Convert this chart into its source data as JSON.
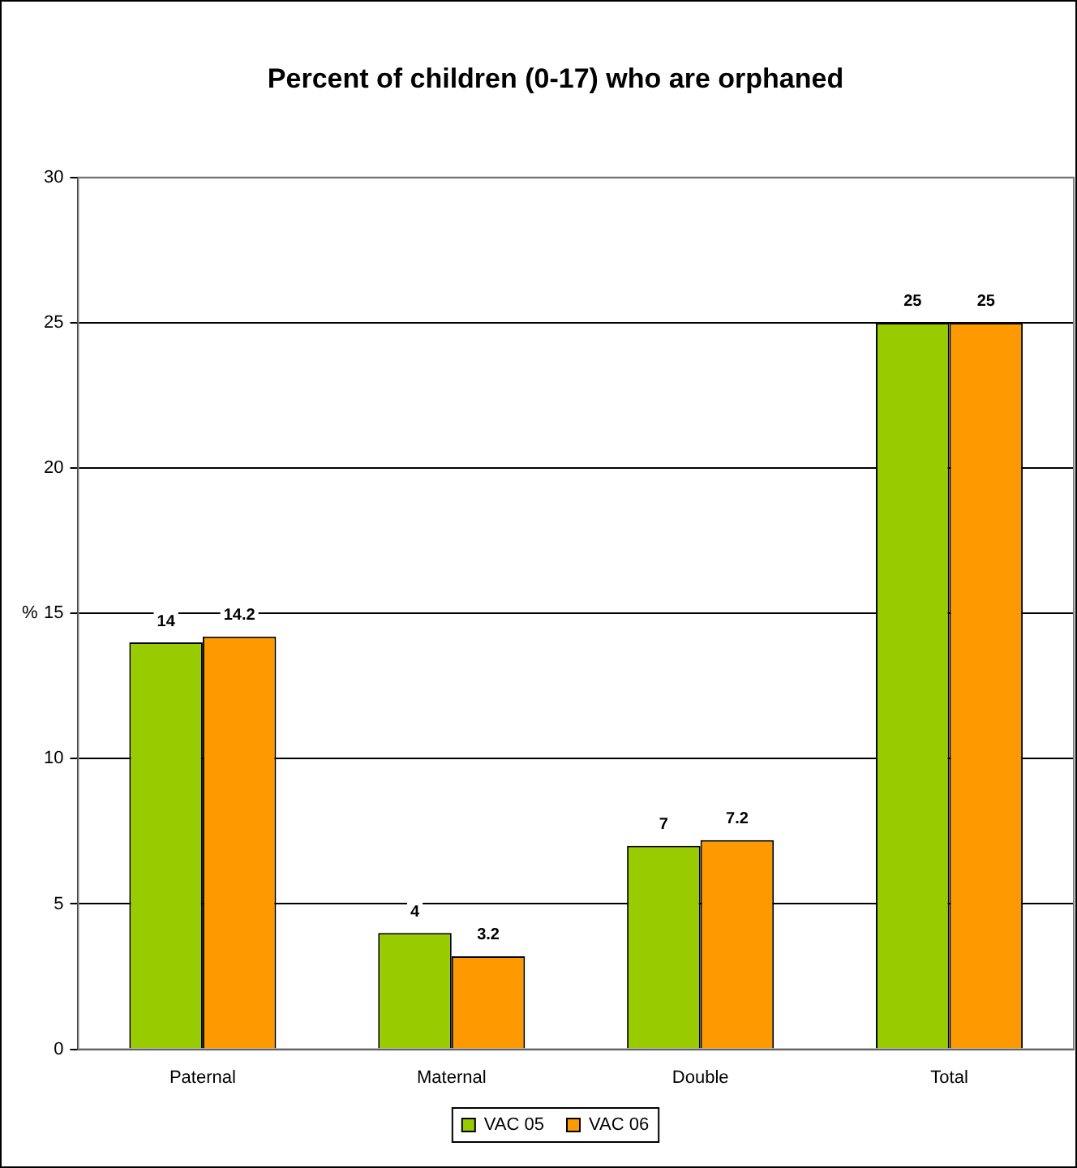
{
  "chart_data": {
    "type": "bar",
    "title": "Percent of children (0-17) who are orphaned",
    "ylabel": "%",
    "categories": [
      "Paternal",
      "Maternal",
      "Double",
      "Total"
    ],
    "series": [
      {
        "name": "VAC 05",
        "color": "#99cc00",
        "values": [
          14,
          4,
          7,
          25
        ]
      },
      {
        "name": "VAC 06",
        "color": "#ff9900",
        "values": [
          14.2,
          3.2,
          7.2,
          25
        ]
      }
    ],
    "ylim": [
      0,
      30
    ],
    "yticks": [
      0,
      5,
      10,
      15,
      20,
      25,
      30
    ],
    "grid": "y",
    "legend": "bottom",
    "data_labels": true
  }
}
